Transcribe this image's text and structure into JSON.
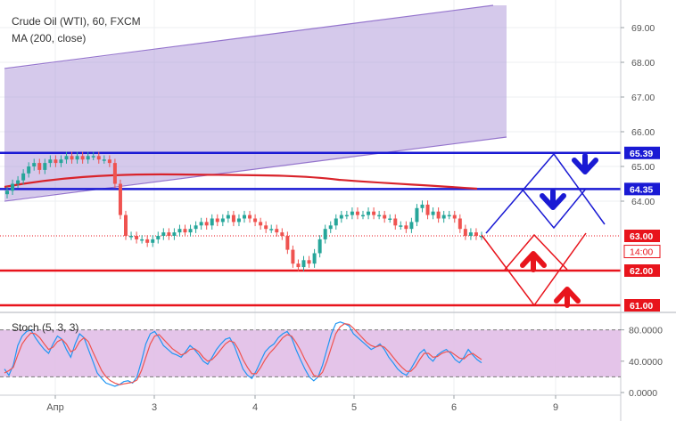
{
  "header": {
    "symbol_line": "Crude Oil (WTI), 60, FXCM",
    "indicator_line": "MA (200, close)"
  },
  "stoch_panel": {
    "label": "Stoch (5, 3, 3)"
  },
  "chart_data": [
    {
      "type": "candlestick",
      "title": "Crude Oil (WTI), 60, FXCM",
      "indicator": "MA (200, close)",
      "y_ticks": [
        "69.00",
        "68.00",
        "67.00",
        "66.00",
        "65.00",
        "64.00"
      ],
      "ylim": [
        60.8,
        69.6
      ],
      "x_ticks": [
        "Апр",
        "3",
        "4",
        "5",
        "6",
        "9"
      ],
      "price_tags": [
        {
          "text": "65.39",
          "value": 65.39,
          "color": "#1a1ad4"
        },
        {
          "text": "64.35",
          "value": 64.35,
          "color": "#1a1ad4"
        },
        {
          "text": "63.00",
          "value": 63.0,
          "color": "#e8141c"
        },
        {
          "text": "14:00",
          "value": 62.55,
          "color": "#e8141c",
          "outline": true
        },
        {
          "text": "62.00",
          "value": 62.0,
          "color": "#e8141c"
        },
        {
          "text": "61.00",
          "value": 61.0,
          "color": "#e8141c"
        }
      ],
      "horizontal_lines": [
        {
          "value": 65.39,
          "color": "#1a1ad4"
        },
        {
          "value": 64.35,
          "color": "#1a1ad4"
        },
        {
          "value": 62.0,
          "color": "#e8141c"
        },
        {
          "value": 61.0,
          "color": "#e8141c"
        }
      ],
      "current_price": 63.0,
      "colors": {
        "bull": "#26a69a",
        "bear": "#ef5350",
        "ma": "#d9232a",
        "channel": "#9575cd",
        "support": "#e8141c",
        "resistance": "#1a1ad4"
      }
    },
    {
      "type": "line",
      "title": "Stoch (5, 3, 3)",
      "y_ticks": [
        "80.0000",
        "40.0000",
        "0.0000"
      ],
      "ylim": [
        -5,
        100
      ],
      "levels": [
        80,
        20
      ],
      "series": [
        {
          "color": "#2196f3",
          "values": [
            30,
            22,
            35,
            60,
            72,
            78,
            80,
            70,
            62,
            55,
            50,
            62,
            72,
            68,
            55,
            45,
            62,
            75,
            70,
            55,
            40,
            25,
            18,
            12,
            10,
            8,
            10,
            14,
            15,
            12,
            20,
            40,
            62,
            75,
            78,
            70,
            60,
            55,
            50,
            48,
            45,
            52,
            60,
            55,
            48,
            40,
            36,
            45,
            55,
            62,
            68,
            70,
            60,
            45,
            30,
            22,
            18,
            28,
            40,
            52,
            58,
            62,
            70,
            75,
            78,
            70,
            55,
            42,
            30,
            20,
            15,
            20,
            35,
            55,
            75,
            88,
            90,
            88,
            85,
            75,
            70,
            65,
            60,
            55,
            58,
            62,
            55,
            45,
            38,
            30,
            25,
            22,
            30,
            40,
            50,
            55,
            45,
            40,
            48,
            52,
            55,
            50,
            42,
            38,
            45,
            55,
            48,
            42,
            38
          ]
        },
        {
          "color": "#ef5350",
          "values": [
            25,
            28,
            32,
            48,
            62,
            70,
            76,
            75,
            70,
            62,
            55,
            58,
            65,
            68,
            62,
            52,
            55,
            65,
            70,
            65,
            52,
            40,
            28,
            20,
            15,
            12,
            10,
            11,
            12,
            13,
            16,
            28,
            45,
            62,
            72,
            74,
            68,
            62,
            56,
            52,
            48,
            50,
            55,
            56,
            52,
            45,
            40,
            42,
            48,
            55,
            62,
            66,
            64,
            55,
            42,
            32,
            24,
            24,
            32,
            42,
            50,
            56,
            63,
            70,
            74,
            72,
            64,
            54,
            42,
            32,
            22,
            20,
            26,
            40,
            58,
            75,
            84,
            88,
            87,
            82,
            76,
            70,
            64,
            60,
            58,
            60,
            58,
            52,
            45,
            38,
            32,
            27,
            27,
            33,
            42,
            50,
            50,
            45,
            46,
            50,
            52,
            52,
            48,
            44,
            43,
            48,
            50,
            46,
            42
          ]
        }
      ],
      "x_ticks": [
        "Апр",
        "3",
        "4",
        "5",
        "6",
        "9"
      ]
    }
  ]
}
